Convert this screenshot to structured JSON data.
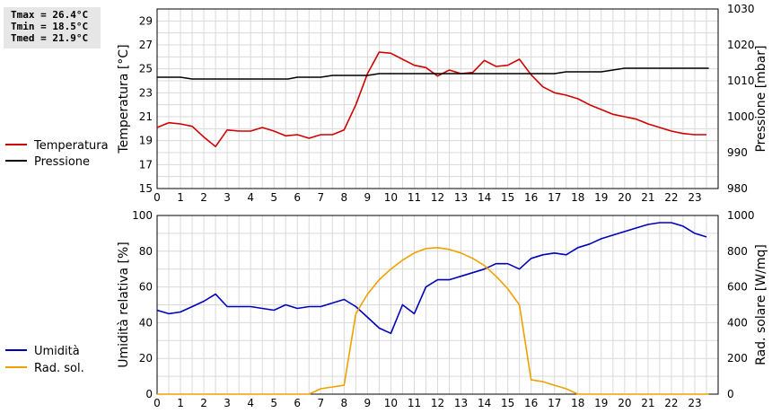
{
  "stats": {
    "tmax": "Tmax = 26.4°C",
    "tmin": "Tmin = 18.5°C",
    "tmed": "Tmed = 21.9°C"
  },
  "colors": {
    "temperature": "#d00000",
    "pressure": "#000000",
    "humidity": "#0000bb",
    "radiation": "#f0a000",
    "grid": "#d9d9d9"
  },
  "chart_data": [
    {
      "type": "line",
      "xlabel": "",
      "x_range": [
        0,
        24
      ],
      "x_ticks": [
        "0",
        "1",
        "2",
        "3",
        "4",
        "5",
        "6",
        "7",
        "8",
        "9",
        "10",
        "11",
        "12",
        "13",
        "14",
        "15",
        "16",
        "17",
        "18",
        "19",
        "20",
        "21",
        "22",
        "23"
      ],
      "y_left": {
        "label": "Temperatura [°C]",
        "range": [
          15,
          30
        ],
        "ticks": [
          "15",
          "17",
          "19",
          "21",
          "23",
          "25",
          "27",
          "29"
        ]
      },
      "y_right": {
        "label": "Pressione [mbar]",
        "range": [
          980,
          1030
        ],
        "ticks": [
          "980",
          "990",
          "1000",
          "1010",
          "1020",
          "1030"
        ]
      },
      "grid": true,
      "legend": "left",
      "series": [
        {
          "name": "Temperatura",
          "axis": "left",
          "x": [
            0,
            0.5,
            1,
            1.5,
            2,
            2.5,
            3,
            3.5,
            4,
            4.5,
            5,
            5.5,
            6,
            6.5,
            7,
            7.5,
            8,
            8.5,
            9,
            9.5,
            10,
            10.5,
            11,
            11.5,
            12,
            12.5,
            13,
            13.5,
            14,
            14.5,
            15,
            15.5,
            16,
            16.5,
            17,
            17.5,
            18,
            18.5,
            19,
            19.5,
            20,
            20.5,
            21,
            21.5,
            22,
            22.5,
            23,
            23.5
          ],
          "values": [
            20.1,
            20.5,
            20.4,
            20.2,
            19.3,
            18.5,
            19.9,
            19.8,
            19.8,
            20.1,
            19.8,
            19.4,
            19.5,
            19.2,
            19.5,
            19.5,
            19.9,
            22.0,
            24.6,
            26.4,
            26.3,
            25.8,
            25.3,
            25.1,
            24.4,
            24.9,
            24.6,
            24.7,
            25.7,
            25.2,
            25.3,
            25.8,
            24.5,
            23.5,
            23.0,
            22.8,
            22.5,
            22.0,
            21.6,
            21.2,
            21.0,
            20.8,
            20.4,
            20.1,
            19.8,
            19.6,
            19.5,
            19.5
          ]
        },
        {
          "name": "Pressione",
          "axis": "right",
          "x": [
            0,
            1,
            1.5,
            2,
            3,
            4,
            5,
            5.6,
            6,
            6.5,
            7,
            7.5,
            8,
            8.5,
            9,
            9.5,
            10,
            11,
            12,
            13,
            14,
            15,
            16,
            17,
            17.5,
            18,
            18.5,
            19,
            19.5,
            20,
            21,
            22,
            23,
            23.6
          ],
          "values": [
            1011,
            1011,
            1010.5,
            1010.5,
            1010.5,
            1010.5,
            1010.5,
            1010.5,
            1011,
            1011,
            1011,
            1011.5,
            1011.5,
            1011.5,
            1011.5,
            1012,
            1012,
            1012,
            1012,
            1012,
            1012,
            1012,
            1012,
            1012,
            1012.5,
            1012.5,
            1012.5,
            1012.5,
            1013,
            1013.5,
            1013.5,
            1013.5,
            1013.5,
            1013.5
          ]
        }
      ]
    },
    {
      "type": "line",
      "xlabel": "",
      "x_range": [
        0,
        24
      ],
      "x_ticks": [
        "0",
        "1",
        "2",
        "3",
        "4",
        "5",
        "6",
        "7",
        "8",
        "9",
        "10",
        "11",
        "12",
        "13",
        "14",
        "15",
        "16",
        "17",
        "18",
        "19",
        "20",
        "21",
        "22",
        "23"
      ],
      "y_left": {
        "label": "Umidità relativa [%]",
        "range": [
          0,
          100
        ],
        "ticks": [
          "0",
          "20",
          "40",
          "60",
          "80",
          "100"
        ]
      },
      "y_right": {
        "label": "Rad. solare [W/mq]",
        "range": [
          0,
          1000
        ],
        "ticks": [
          "0",
          "200",
          "400",
          "600",
          "800",
          "1000"
        ]
      },
      "grid": true,
      "legend": "left",
      "series": [
        {
          "name": "Umidità",
          "axis": "left",
          "x": [
            0,
            0.5,
            1,
            1.5,
            2,
            2.5,
            3,
            3.5,
            4,
            4.5,
            5,
            5.5,
            6,
            6.5,
            7,
            7.5,
            8,
            8.5,
            9,
            9.5,
            10,
            10.5,
            11,
            11.5,
            12,
            12.5,
            13,
            13.5,
            14,
            14.5,
            15,
            15.5,
            16,
            16.5,
            17,
            17.5,
            18,
            18.5,
            19,
            19.5,
            20,
            20.5,
            21,
            21.5,
            22,
            22.5,
            23,
            23.5
          ],
          "values": [
            47,
            45,
            46,
            49,
            52,
            56,
            49,
            49,
            49,
            48,
            47,
            50,
            48,
            49,
            49,
            51,
            53,
            49,
            43,
            37,
            34,
            50,
            45,
            60,
            64,
            64,
            66,
            68,
            70,
            73,
            73,
            70,
            76,
            78,
            79,
            78,
            82,
            84,
            87,
            89,
            91,
            93,
            95,
            96,
            96,
            94,
            90,
            88
          ]
        },
        {
          "name": "Rad. sol.",
          "axis": "right",
          "x": [
            0,
            1,
            2,
            3,
            4,
            5,
            6,
            6.5,
            7,
            7.5,
            8,
            8.5,
            9,
            9.5,
            10,
            10.5,
            11,
            11.5,
            12,
            12.5,
            13,
            13.5,
            14,
            14.5,
            15,
            15.5,
            16,
            16.5,
            17,
            17.5,
            18,
            19,
            20,
            21,
            22,
            23,
            23.6
          ],
          "values": [
            0,
            0,
            0,
            0,
            0,
            0,
            0,
            0,
            30,
            40,
            50,
            450,
            560,
            640,
            700,
            750,
            790,
            815,
            820,
            810,
            790,
            760,
            720,
            660,
            590,
            500,
            80,
            70,
            50,
            30,
            0,
            0,
            0,
            0,
            0,
            0,
            0
          ]
        }
      ]
    }
  ]
}
